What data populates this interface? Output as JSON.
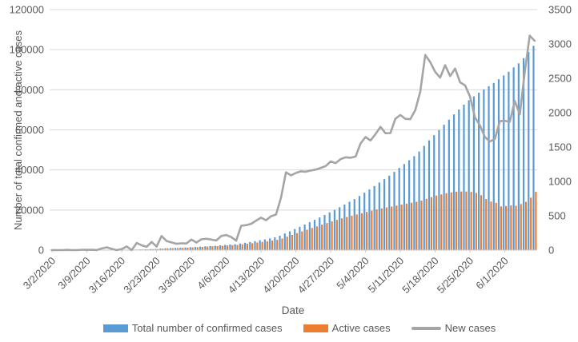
{
  "chart_data": {
    "type": "combo-bar-line",
    "title": "",
    "x_axis": {
      "label": "Date",
      "tick_labels": [
        "3/2/2020",
        "3/9/2020",
        "3/16/2020",
        "3/23/2020",
        "3/30/2020",
        "4/6/2020",
        "4/13/2020",
        "4/20/2020",
        "4/27/2020",
        "5/4/2020",
        "5/11/2020",
        "5/18/2020",
        "5/25/2020",
        "6/1/2020"
      ],
      "tick_every_days": 7
    },
    "y_axis_left": {
      "label": "Number of total confirmed and active cases",
      "min": 0,
      "max": 120000,
      "step": 20000,
      "ticks": [
        0,
        20000,
        40000,
        60000,
        80000,
        100000,
        120000
      ]
    },
    "y_axis_right": {
      "label": "",
      "min": 0,
      "max": 3500,
      "step": 500,
      "ticks": [
        0,
        500,
        1000,
        1500,
        2000,
        2500,
        3000,
        3500
      ]
    },
    "grid": true,
    "legend_position": "bottom",
    "text_color": "#595959",
    "grid_color": "#D9D9D9",
    "axis_line_color": "#C9C9C9",
    "dates": [
      "3/2/2020",
      "3/3/2020",
      "3/4/2020",
      "3/5/2020",
      "3/6/2020",
      "3/7/2020",
      "3/8/2020",
      "3/9/2020",
      "3/10/2020",
      "3/11/2020",
      "3/12/2020",
      "3/13/2020",
      "3/14/2020",
      "3/15/2020",
      "3/16/2020",
      "3/17/2020",
      "3/18/2020",
      "3/19/2020",
      "3/20/2020",
      "3/21/2020",
      "3/22/2020",
      "3/23/2020",
      "3/24/2020",
      "3/25/2020",
      "3/26/2020",
      "3/27/2020",
      "3/28/2020",
      "3/29/2020",
      "3/30/2020",
      "3/31/2020",
      "4/1/2020",
      "4/2/2020",
      "4/3/2020",
      "4/4/2020",
      "4/5/2020",
      "4/6/2020",
      "4/7/2020",
      "4/8/2020",
      "4/9/2020",
      "4/10/2020",
      "4/11/2020",
      "4/12/2020",
      "4/13/2020",
      "4/14/2020",
      "4/15/2020",
      "4/16/2020",
      "4/17/2020",
      "4/18/2020",
      "4/19/2020",
      "4/20/2020",
      "4/21/2020",
      "4/22/2020",
      "4/23/2020",
      "4/24/2020",
      "4/25/2020",
      "4/26/2020",
      "4/27/2020",
      "4/28/2020",
      "4/29/2020",
      "4/30/2020",
      "5/1/2020",
      "5/2/2020",
      "5/3/2020",
      "5/4/2020",
      "5/5/2020",
      "5/6/2020",
      "5/7/2020",
      "5/8/2020",
      "5/9/2020",
      "5/10/2020",
      "5/11/2020",
      "5/12/2020",
      "5/13/2020",
      "5/14/2020",
      "5/15/2020",
      "5/16/2020",
      "5/17/2020",
      "5/18/2020",
      "5/19/2020",
      "5/20/2020",
      "5/21/2020",
      "5/22/2020",
      "5/23/2020",
      "5/24/2020",
      "5/25/2020",
      "5/26/2020",
      "5/27/2020",
      "5/28/2020",
      "5/29/2020",
      "5/30/2020",
      "5/31/2020",
      "6/1/2020",
      "6/2/2020",
      "6/3/2020",
      "6/4/2020",
      "6/5/2020",
      "6/6/2020",
      "6/7/2020"
    ],
    "series": [
      {
        "name": "Total number of confirmed cases",
        "type": "bar",
        "axis": "left",
        "color": "#5B9BD5",
        "values": [
          1,
          1,
          1,
          5,
          5,
          5,
          11,
          15,
          20,
          21,
          45,
          86,
          103,
          103,
          118,
          171,
          171,
          274,
          344,
          392,
          511,
          562,
          767,
          900,
          1012,
          1104,
          1203,
          1299,
          1453,
          1563,
          1720,
          1885,
          2039,
          2179,
          2385,
          2605,
          2795,
          2932,
          3287,
          3651,
          4033,
          4462,
          4934,
          5369,
          5862,
          6380,
          7142,
          8274,
          9362,
          10484,
          11631,
          12772,
          13930,
          15102,
          16299,
          17522,
          18811,
          20077,
          21402,
          22753,
          24097,
          25459,
          27011,
          28656,
          30251,
          31938,
          33731,
          35432,
          37136,
          39048,
          41014,
          42925,
          44830,
          46869,
          49176,
          52016,
          54752,
          57345,
          59854,
          62545,
          65077,
          67719,
          70161,
          72560,
          74795,
          76726,
          78541,
          80185,
          81766,
          83384,
          85261,
          87142,
          89011,
          91182,
          93157,
          95748,
          98869,
          101914
        ]
      },
      {
        "name": "Active cases",
        "type": "bar",
        "axis": "left",
        "color": "#ED7D31",
        "values": [
          1,
          1,
          1,
          5,
          5,
          5,
          11,
          15,
          20,
          21,
          44,
          85,
          101,
          100,
          114,
          165,
          163,
          265,
          330,
          376,
          489,
          536,
          730,
          857,
          960,
          1039,
          1125,
          1210,
          1352,
          1443,
          1588,
          1729,
          1855,
          1963,
          2139,
          2322,
          2469,
          2567,
          2858,
          3148,
          3448,
          3776,
          4107,
          4408,
          4753,
          5136,
          5765,
          6707,
          7576,
          8477,
          9333,
          10175,
          11027,
          11854,
          12688,
          13494,
          14336,
          15101,
          15823,
          16520,
          17167,
          17781,
          18430,
          19057,
          19676,
          20269,
          20804,
          21295,
          21732,
          22211,
          22709,
          23184,
          23632,
          24116,
          24705,
          25599,
          26450,
          27197,
          27789,
          28377,
          28791,
          29135,
          29248,
          29243,
          29040,
          28530,
          27400,
          25500,
          24200,
          23600,
          21800,
          22000,
          22300,
          22100,
          23000,
          24100,
          26200,
          29100
        ]
      },
      {
        "name": "New cases",
        "type": "line",
        "axis": "right",
        "color": "#A5A5A5",
        "values": [
          1,
          0,
          0,
          4,
          0,
          0,
          6,
          4,
          5,
          1,
          24,
          41,
          17,
          0,
          15,
          53,
          0,
          103,
          70,
          48,
          119,
          51,
          205,
          133,
          112,
          92,
          99,
          96,
          154,
          110,
          157,
          165,
          154,
          140,
          206,
          220,
          190,
          137,
          355,
          364,
          382,
          429,
          472,
          435,
          493,
          518,
          762,
          1132,
          1088,
          1122,
          1147,
          1141,
          1158,
          1172,
          1197,
          1223,
          1289,
          1266,
          1325,
          1351,
          1344,
          1362,
          1552,
          1645,
          1595,
          1687,
          1793,
          1701,
          1704,
          1912,
          1966,
          1911,
          1905,
          2039,
          2307,
          2840,
          2736,
          2593,
          2509,
          2691,
          2532,
          2642,
          2442,
          2399,
          2235,
          1931,
          1815,
          1644,
          1581,
          1618,
          1877,
          1881,
          1869,
          2171,
          1975,
          2591,
          3121,
          3045
        ]
      }
    ]
  }
}
